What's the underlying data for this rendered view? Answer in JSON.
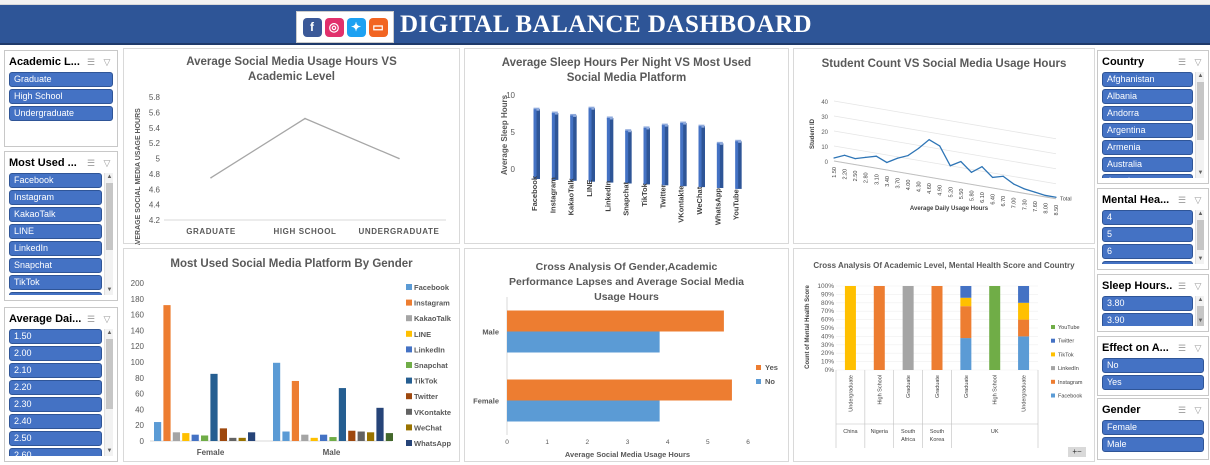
{
  "dashboard": {
    "title": "DIGITAL BALANCE DASHBOARD",
    "logos": [
      {
        "icon": "facebook-icon",
        "glyph": "f",
        "color": "#3b5998"
      },
      {
        "icon": "instagram-icon",
        "glyph": "◎",
        "color": "#e1306c"
      },
      {
        "icon": "twitter-icon",
        "glyph": "✦",
        "color": "#1da1f2"
      },
      {
        "icon": "messenger-icon",
        "glyph": "▭",
        "color": "#f26522"
      }
    ]
  },
  "slicers": {
    "academic_level": {
      "title": "Academic L...",
      "items": [
        "Graduate",
        "High School",
        "Undergraduate"
      ]
    },
    "most_used": {
      "title": "Most Used ...",
      "items": [
        "Facebook",
        "Instagram",
        "KakaoTalk",
        "LINE",
        "LinkedIn",
        "Snapchat",
        "TikTok",
        "Twitter"
      ]
    },
    "avg_daily": {
      "title": "Average Dai...",
      "items": [
        "1.50",
        "2.00",
        "2.10",
        "2.20",
        "2.30",
        "2.40",
        "2.50",
        "2.60"
      ]
    },
    "country": {
      "title": "Country",
      "items": [
        "Afghanistan",
        "Albania",
        "Andorra",
        "Argentina",
        "Armenia",
        "Australia",
        "Austria"
      ]
    },
    "mental_health": {
      "title": "Mental Hea...",
      "items": [
        "4",
        "5",
        "6",
        "7"
      ]
    },
    "sleep_hours": {
      "title": "Sleep Hours...",
      "items": [
        "3.80",
        "3.90"
      ]
    },
    "effect": {
      "title": "Effect on A...",
      "items": [
        "No",
        "Yes"
      ]
    },
    "gender": {
      "title": "Gender",
      "items": [
        "Female",
        "Male"
      ]
    }
  },
  "chart_data": [
    {
      "id": "chart1",
      "type": "line",
      "title": "Average Social Media Usage Hours VS Academic Level",
      "ylabel": "AVERAGE SOCIAL MEDIA USAGE HOURS",
      "xlabel": "",
      "categories": [
        "GRADUATE",
        "HIGH SCHOOL",
        "UNDERGRADUATE"
      ],
      "values": [
        4.75,
        5.52,
        5.0
      ],
      "ylim": [
        4.2,
        5.8
      ],
      "yticks": [
        "4.2",
        "4.4",
        "4.6",
        "4.8",
        "5",
        "5.2",
        "5.4",
        "5.6",
        "5.8"
      ],
      "color": "#a6a6a6"
    },
    {
      "id": "chart2",
      "type": "bar",
      "title": "Average Sleep Hours Per Night VS Most Used Social Media Platform",
      "ylabel": "Average Sleep Hours",
      "xlabel": "",
      "categories": [
        "Facebook",
        "Instagram",
        "KakaoTalk",
        "LINE",
        "LinkedIn",
        "Snapchat",
        "TikTok",
        "Twitter",
        "VKontakte",
        "WeChat",
        "WhatsApp",
        "YouTube"
      ],
      "values": [
        7.0,
        6.6,
        6.4,
        7.5,
        6.3,
        4.7,
        5.2,
        5.7,
        6.1,
        5.8,
        3.6,
        4.0
      ],
      "ylim": [
        0,
        10
      ],
      "yticks": [
        "0",
        "5",
        "10"
      ],
      "color": "#4472c4"
    },
    {
      "id": "chart3",
      "type": "area",
      "title": "Student Count VS Social Media Usage Hours",
      "ylabel": "Student ID",
      "xlabel": "Average Daily Usage Hours",
      "series_label": "Total",
      "x": [
        "1.50",
        "2.20",
        "2.50",
        "2.80",
        "3.10",
        "3.40",
        "3.70",
        "4.00",
        "4.30",
        "4.60",
        "4.90",
        "5.20",
        "5.50",
        "5.80",
        "6.10",
        "6.40",
        "6.70",
        "7.00",
        "7.30",
        "7.60",
        "8.00",
        "8.50"
      ],
      "values": [
        2,
        5,
        4,
        6,
        8,
        5,
        9,
        12,
        18,
        25,
        22,
        10,
        14,
        8,
        13,
        7,
        9,
        5,
        3,
        2,
        1,
        1
      ],
      "ylim": [
        0,
        40
      ],
      "yticks": [
        "0",
        "10",
        "20",
        "30",
        "40"
      ],
      "color": "#2e75b6"
    },
    {
      "id": "chart4",
      "type": "bar",
      "title": "Most Used Social Media Platform By Gender",
      "categories": [
        "Female",
        "Male"
      ],
      "ylim": [
        0,
        200
      ],
      "yticks": [
        "0",
        "20",
        "40",
        "60",
        "80",
        "100",
        "120",
        "140",
        "160",
        "180",
        "200"
      ],
      "series": [
        {
          "name": "Facebook",
          "color": "#5b9bd5",
          "values": [
            24,
            12
          ]
        },
        {
          "name": "Instagram",
          "color": "#ed7d31",
          "values": [
            172,
            76
          ]
        },
        {
          "name": "KakaoTalk",
          "color": "#a5a5a5",
          "values": [
            11,
            8
          ]
        },
        {
          "name": "LINE",
          "color": "#ffc000",
          "values": [
            10,
            4
          ]
        },
        {
          "name": "LinkedIn",
          "color": "#4472c4",
          "values": [
            8,
            8
          ]
        },
        {
          "name": "Snapchat",
          "color": "#70ad47",
          "values": [
            7,
            5
          ]
        },
        {
          "name": "TikTok",
          "color": "#255e91",
          "values": [
            85,
            67
          ]
        },
        {
          "name": "Twitter",
          "color": "#9e480e",
          "values": [
            16,
            13
          ]
        },
        {
          "name": "VKontakte",
          "color": "#636363",
          "values": [
            4,
            12
          ]
        },
        {
          "name": "WeChat",
          "color": "#997300",
          "values": [
            4,
            11
          ]
        },
        {
          "name": "WhatsApp",
          "color": "#264478",
          "values": [
            11,
            42
          ]
        },
        {
          "name": "YouTube",
          "color": "#43682b",
          "values": [
            0,
            10
          ]
        }
      ],
      "male_extra": {
        "value": 99,
        "color": "#5b9bd5"
      }
    },
    {
      "id": "chart5",
      "type": "bar",
      "orientation": "horizontal",
      "title": "Cross Analysis Of Gender,Academic Performance Lapses and Average Social Media Usage Hours",
      "xlabel": "Average Social Media Usage Hours",
      "categories": [
        "Male",
        "Female"
      ],
      "xlim": [
        0,
        6
      ],
      "xticks": [
        "0",
        "1",
        "2",
        "3",
        "4",
        "5",
        "6"
      ],
      "series": [
        {
          "name": "Yes",
          "color": "#ed7d31",
          "values": [
            5.4,
            5.6
          ]
        },
        {
          "name": "No",
          "color": "#5b9bd5",
          "values": [
            3.8,
            3.8
          ]
        }
      ]
    },
    {
      "id": "chart6",
      "type": "bar",
      "stacked": "percent",
      "title": "Cross Analysis Of Academic Level, Mental Health Score and Country",
      "ylabel": "Count of Mental Health Score",
      "yticks": [
        "0%",
        "10%",
        "20%",
        "30%",
        "40%",
        "50%",
        "60%",
        "70%",
        "80%",
        "90%",
        "100%"
      ],
      "groups": [
        "China",
        "Nigeria",
        "South Africa",
        "South Korea",
        "UK"
      ],
      "categories": [
        "Undergraduate",
        "High School",
        "Graduate",
        "Graduate",
        "Graduate",
        "High School",
        "Undergraduate"
      ],
      "group_index": [
        0,
        1,
        2,
        3,
        4,
        4,
        4
      ],
      "series": [
        {
          "name": "Facebook",
          "color": "#5b9bd5",
          "values": [
            0,
            0,
            0,
            0,
            38,
            0,
            40
          ]
        },
        {
          "name": "Instagram",
          "color": "#ed7d31",
          "values": [
            0,
            100,
            0,
            100,
            38,
            0,
            20
          ]
        },
        {
          "name": "LinkedIn",
          "color": "#a5a5a5",
          "values": [
            0,
            0,
            100,
            0,
            0,
            0,
            0
          ]
        },
        {
          "name": "TikTok",
          "color": "#ffc000",
          "values": [
            100,
            0,
            0,
            0,
            10,
            0,
            20
          ]
        },
        {
          "name": "Twitter",
          "color": "#4472c4",
          "values": [
            0,
            0,
            0,
            0,
            14,
            0,
            20
          ]
        },
        {
          "name": "YouTube",
          "color": "#70ad47",
          "values": [
            0,
            0,
            0,
            0,
            0,
            100,
            0
          ]
        }
      ],
      "legend": [
        "YouTube",
        "Twitter",
        "TikTok",
        "LinkedIn",
        "Instagram",
        "Facebook"
      ]
    }
  ],
  "controls": {
    "collapse_label": "+−"
  }
}
